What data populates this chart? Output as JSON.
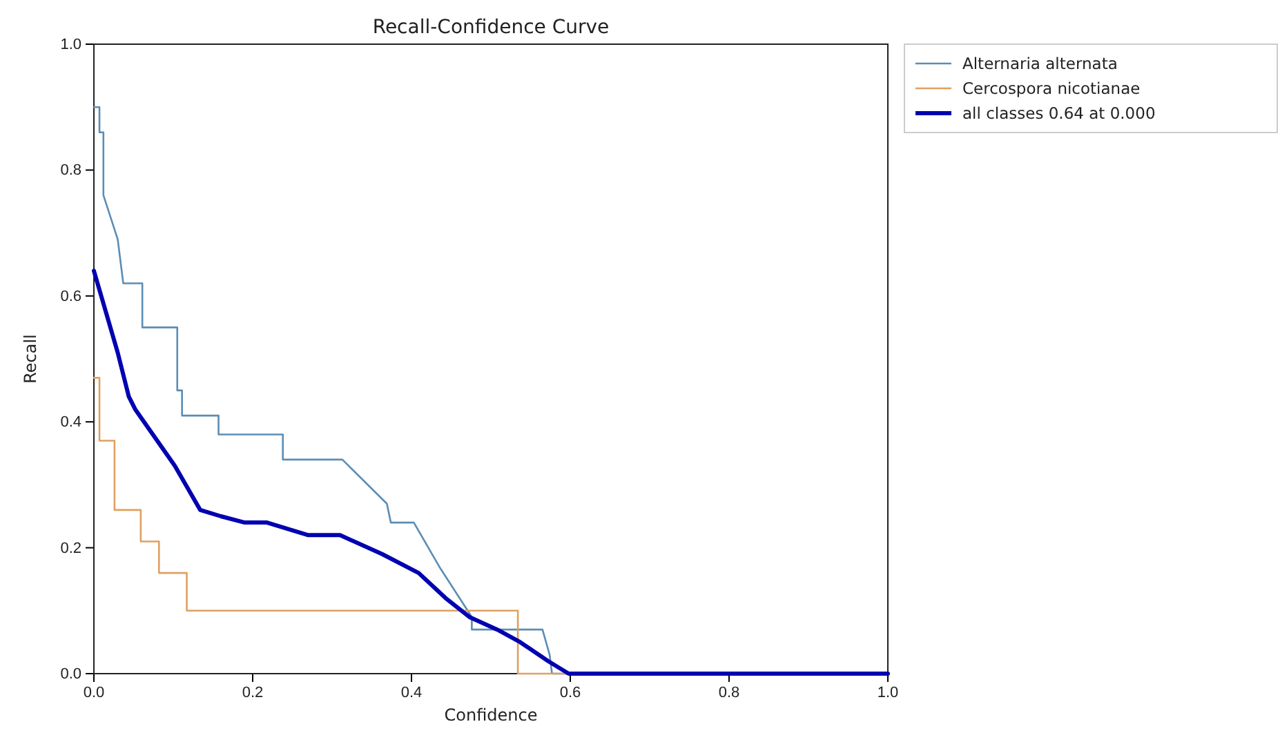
{
  "chart_data": {
    "type": "line",
    "title": "Recall-Confidence Curve",
    "xlabel": "Confidence",
    "ylabel": "Recall",
    "xlim": [
      0,
      1
    ],
    "ylim": [
      0,
      1
    ],
    "xticks": [
      {
        "value": 0,
        "label": "0.0"
      },
      {
        "value": 0.2,
        "label": "0.2"
      },
      {
        "value": 0.4,
        "label": "0.4"
      },
      {
        "value": 0.6,
        "label": "0.6"
      },
      {
        "value": 0.8,
        "label": "0.8"
      },
      {
        "value": 1,
        "label": "1.0"
      }
    ],
    "yticks": [
      {
        "value": 0,
        "label": "0.0"
      },
      {
        "value": 0.2,
        "label": "0.2"
      },
      {
        "value": 0.4,
        "label": "0.4"
      },
      {
        "value": 0.6,
        "label": "0.6"
      },
      {
        "value": 0.8,
        "label": "0.8"
      },
      {
        "value": 1,
        "label": "1.0"
      }
    ],
    "grid": false,
    "legend": "top right",
    "marker": "none",
    "line_style": "solid",
    "series": [
      {
        "name": "Alternaria alternata",
        "color": "#5b8db5",
        "x": [
          0,
          0.007,
          0.007,
          0.012,
          0.012,
          0.03,
          0.037,
          0.061,
          0.061,
          0.105,
          0.105,
          0.111,
          0.111,
          0.157,
          0.157,
          0.238,
          0.238,
          0.313,
          0.369,
          0.374,
          0.403,
          0.435,
          0.476,
          0.476,
          0.565,
          0.574,
          0.577,
          1
        ],
        "values": [
          0.9,
          0.9,
          0.86,
          0.86,
          0.76,
          0.69,
          0.62,
          0.62,
          0.55,
          0.55,
          0.45,
          0.45,
          0.41,
          0.41,
          0.38,
          0.38,
          0.34,
          0.34,
          0.27,
          0.24,
          0.24,
          0.17,
          0.09,
          0.07,
          0.07,
          0.03,
          0,
          0
        ]
      },
      {
        "name": "Cercospora nicotianae",
        "color": "#e0a060",
        "x": [
          0,
          0.007,
          0.007,
          0.026,
          0.026,
          0.059,
          0.059,
          0.082,
          0.082,
          0.117,
          0.117,
          0.534,
          0.534,
          1
        ],
        "values": [
          0.47,
          0.47,
          0.37,
          0.37,
          0.26,
          0.26,
          0.21,
          0.21,
          0.16,
          0.16,
          0.1,
          0.1,
          0,
          0
        ]
      },
      {
        "name": "all classes 0.64 at 0.000",
        "color": "#0000b0",
        "x": [
          0,
          0.03,
          0.044,
          0.052,
          0.102,
          0.134,
          0.16,
          0.19,
          0.218,
          0.27,
          0.31,
          0.363,
          0.409,
          0.443,
          0.473,
          0.508,
          0.537,
          0.572,
          0.598,
          1
        ],
        "values": [
          0.64,
          0.51,
          0.44,
          0.42,
          0.33,
          0.26,
          0.25,
          0.24,
          0.24,
          0.22,
          0.22,
          0.19,
          0.16,
          0.12,
          0.09,
          0.07,
          0.05,
          0.02,
          0,
          0
        ]
      }
    ]
  }
}
